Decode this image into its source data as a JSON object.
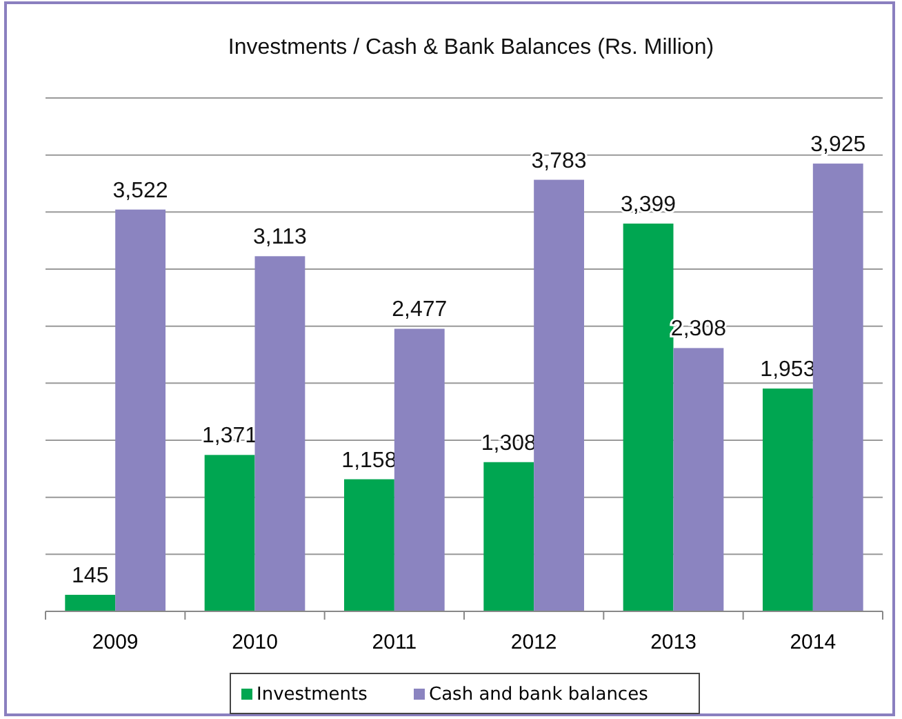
{
  "chart_data": {
    "type": "bar",
    "title": "Investments / Cash & Bank Balances (Rs. Million)",
    "categories": [
      "2009",
      "2010",
      "2011",
      "2012",
      "2013",
      "2014"
    ],
    "series": [
      {
        "name": "Investments",
        "color": "#00a651",
        "values": [
          145,
          1371,
          1158,
          1308,
          3399,
          1953
        ],
        "value_labels": [
          "145",
          "1,371",
          "1,158",
          "1,308",
          "3,399",
          "1,953"
        ]
      },
      {
        "name": "Cash and bank balances",
        "color": "#8b84c0",
        "values": [
          3522,
          3113,
          2477,
          3783,
          2308,
          3925
        ],
        "value_labels": [
          "3,522",
          "3,113",
          "2,477",
          "3,783",
          "2,308",
          "3,925"
        ]
      }
    ],
    "ylim": [
      0,
      4500
    ],
    "yticks": [
      {
        "value": 0,
        "label": null
      },
      {
        "value": 500,
        "label": null
      },
      {
        "value": 1000,
        "label": null
      },
      {
        "value": 1500,
        "label": null
      },
      {
        "value": 2000,
        "label": null
      },
      {
        "value": 2500,
        "label": null
      },
      {
        "value": 3000,
        "label": null
      },
      {
        "value": 3500,
        "label": null
      },
      {
        "value": 4000,
        "label": null
      },
      {
        "value": 4500,
        "label": null
      }
    ],
    "tick_labels": "x",
    "grid": "y",
    "legend": "bottom"
  }
}
